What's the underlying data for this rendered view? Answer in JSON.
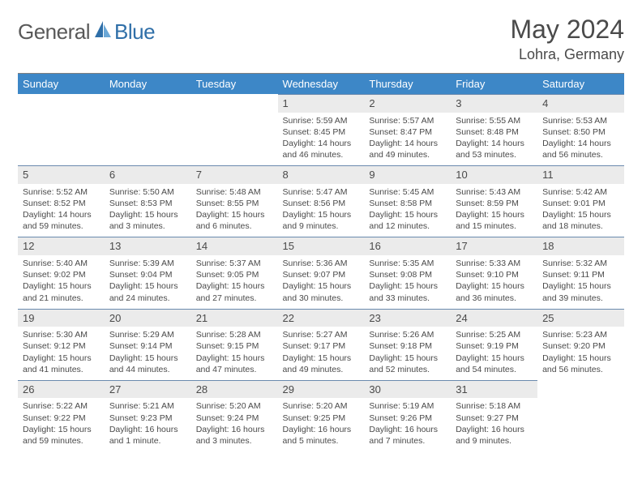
{
  "brand": {
    "name": "General",
    "accent": "Blue"
  },
  "title": "May 2024",
  "location": "Lohra, Germany",
  "colors": {
    "header_bg": "#3d87c7",
    "header_text": "#ffffff",
    "daynum_bg": "#ebebeb",
    "row_divider": "#6a8aae",
    "text": "#4a4a4a",
    "logo_blue": "#2f6fa8"
  },
  "daysOfWeek": [
    "Sunday",
    "Monday",
    "Tuesday",
    "Wednesday",
    "Thursday",
    "Friday",
    "Saturday"
  ],
  "weeks": [
    [
      null,
      null,
      null,
      {
        "n": "1",
        "sr": "5:59 AM",
        "ss": "8:45 PM",
        "dl": "14 hours and 46 minutes."
      },
      {
        "n": "2",
        "sr": "5:57 AM",
        "ss": "8:47 PM",
        "dl": "14 hours and 49 minutes."
      },
      {
        "n": "3",
        "sr": "5:55 AM",
        "ss": "8:48 PM",
        "dl": "14 hours and 53 minutes."
      },
      {
        "n": "4",
        "sr": "5:53 AM",
        "ss": "8:50 PM",
        "dl": "14 hours and 56 minutes."
      }
    ],
    [
      {
        "n": "5",
        "sr": "5:52 AM",
        "ss": "8:52 PM",
        "dl": "14 hours and 59 minutes."
      },
      {
        "n": "6",
        "sr": "5:50 AM",
        "ss": "8:53 PM",
        "dl": "15 hours and 3 minutes."
      },
      {
        "n": "7",
        "sr": "5:48 AM",
        "ss": "8:55 PM",
        "dl": "15 hours and 6 minutes."
      },
      {
        "n": "8",
        "sr": "5:47 AM",
        "ss": "8:56 PM",
        "dl": "15 hours and 9 minutes."
      },
      {
        "n": "9",
        "sr": "5:45 AM",
        "ss": "8:58 PM",
        "dl": "15 hours and 12 minutes."
      },
      {
        "n": "10",
        "sr": "5:43 AM",
        "ss": "8:59 PM",
        "dl": "15 hours and 15 minutes."
      },
      {
        "n": "11",
        "sr": "5:42 AM",
        "ss": "9:01 PM",
        "dl": "15 hours and 18 minutes."
      }
    ],
    [
      {
        "n": "12",
        "sr": "5:40 AM",
        "ss": "9:02 PM",
        "dl": "15 hours and 21 minutes."
      },
      {
        "n": "13",
        "sr": "5:39 AM",
        "ss": "9:04 PM",
        "dl": "15 hours and 24 minutes."
      },
      {
        "n": "14",
        "sr": "5:37 AM",
        "ss": "9:05 PM",
        "dl": "15 hours and 27 minutes."
      },
      {
        "n": "15",
        "sr": "5:36 AM",
        "ss": "9:07 PM",
        "dl": "15 hours and 30 minutes."
      },
      {
        "n": "16",
        "sr": "5:35 AM",
        "ss": "9:08 PM",
        "dl": "15 hours and 33 minutes."
      },
      {
        "n": "17",
        "sr": "5:33 AM",
        "ss": "9:10 PM",
        "dl": "15 hours and 36 minutes."
      },
      {
        "n": "18",
        "sr": "5:32 AM",
        "ss": "9:11 PM",
        "dl": "15 hours and 39 minutes."
      }
    ],
    [
      {
        "n": "19",
        "sr": "5:30 AM",
        "ss": "9:12 PM",
        "dl": "15 hours and 41 minutes."
      },
      {
        "n": "20",
        "sr": "5:29 AM",
        "ss": "9:14 PM",
        "dl": "15 hours and 44 minutes."
      },
      {
        "n": "21",
        "sr": "5:28 AM",
        "ss": "9:15 PM",
        "dl": "15 hours and 47 minutes."
      },
      {
        "n": "22",
        "sr": "5:27 AM",
        "ss": "9:17 PM",
        "dl": "15 hours and 49 minutes."
      },
      {
        "n": "23",
        "sr": "5:26 AM",
        "ss": "9:18 PM",
        "dl": "15 hours and 52 minutes."
      },
      {
        "n": "24",
        "sr": "5:25 AM",
        "ss": "9:19 PM",
        "dl": "15 hours and 54 minutes."
      },
      {
        "n": "25",
        "sr": "5:23 AM",
        "ss": "9:20 PM",
        "dl": "15 hours and 56 minutes."
      }
    ],
    [
      {
        "n": "26",
        "sr": "5:22 AM",
        "ss": "9:22 PM",
        "dl": "15 hours and 59 minutes."
      },
      {
        "n": "27",
        "sr": "5:21 AM",
        "ss": "9:23 PM",
        "dl": "16 hours and 1 minute."
      },
      {
        "n": "28",
        "sr": "5:20 AM",
        "ss": "9:24 PM",
        "dl": "16 hours and 3 minutes."
      },
      {
        "n": "29",
        "sr": "5:20 AM",
        "ss": "9:25 PM",
        "dl": "16 hours and 5 minutes."
      },
      {
        "n": "30",
        "sr": "5:19 AM",
        "ss": "9:26 PM",
        "dl": "16 hours and 7 minutes."
      },
      {
        "n": "31",
        "sr": "5:18 AM",
        "ss": "9:27 PM",
        "dl": "16 hours and 9 minutes."
      },
      null
    ]
  ],
  "labels": {
    "sunrise": "Sunrise:",
    "sunset": "Sunset:",
    "daylight": "Daylight:"
  }
}
